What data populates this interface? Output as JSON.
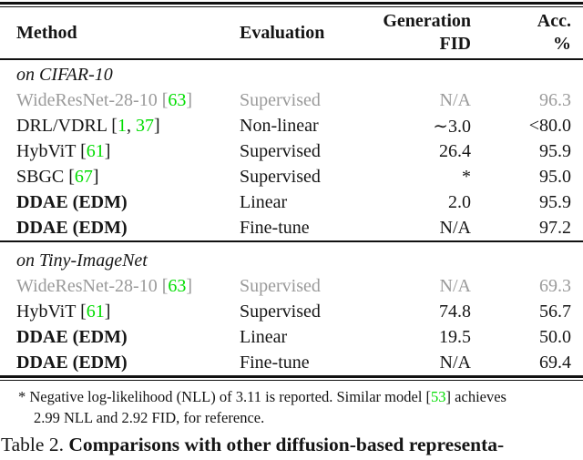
{
  "colors": {
    "citation_green": "#00dd00",
    "grayed_row": "#9a9a9a",
    "text_black": "#151515"
  },
  "header": {
    "method": "Method",
    "evaluation": "Evaluation",
    "generation_fid_line1": "Generation",
    "generation_fid_line2": "FID",
    "acc_line1": "Acc.",
    "acc_line2": "%"
  },
  "sections": [
    {
      "label": "on CIFAR-10",
      "rows": [
        {
          "method": "WideResNet-28-10",
          "refs": [
            "63"
          ],
          "evaluation": "Supervised",
          "fid": "N/A",
          "acc": "96.3",
          "grayed": true,
          "bold": false
        },
        {
          "method": "DRL/VDRL",
          "refs": [
            "1",
            "37"
          ],
          "evaluation": "Non-linear",
          "fid": "∼3.0",
          "acc": "<80.0",
          "grayed": false,
          "bold": false
        },
        {
          "method": "HybViT",
          "refs": [
            "61"
          ],
          "evaluation": "Supervised",
          "fid": "26.4",
          "acc": "95.9",
          "grayed": false,
          "bold": false
        },
        {
          "method": "SBGC",
          "refs": [
            "67"
          ],
          "evaluation": "Supervised",
          "fid": "*",
          "acc": "95.0",
          "grayed": false,
          "bold": false
        },
        {
          "method": "DDAE (EDM)",
          "refs": [],
          "evaluation": "Linear",
          "fid": "2.0",
          "acc": "95.9",
          "grayed": false,
          "bold": true
        },
        {
          "method": "DDAE (EDM)",
          "refs": [],
          "evaluation": "Fine-tune",
          "fid": "N/A",
          "acc": "97.2",
          "grayed": false,
          "bold": true
        }
      ]
    },
    {
      "label": "on Tiny-ImageNet",
      "rows": [
        {
          "method": "WideResNet-28-10",
          "refs": [
            "63"
          ],
          "evaluation": "Supervised",
          "fid": "N/A",
          "acc": "69.3",
          "grayed": true,
          "bold": false
        },
        {
          "method": "HybViT",
          "refs": [
            "61"
          ],
          "evaluation": "Supervised",
          "fid": "74.8",
          "acc": "56.7",
          "grayed": false,
          "bold": false
        },
        {
          "method": "DDAE (EDM)",
          "refs": [],
          "evaluation": "Linear",
          "fid": "19.5",
          "acc": "50.0",
          "grayed": false,
          "bold": true
        },
        {
          "method": "DDAE (EDM)",
          "refs": [],
          "evaluation": "Fine-tune",
          "fid": "N/A",
          "acc": "69.4",
          "grayed": false,
          "bold": true
        }
      ]
    }
  ],
  "footnote": {
    "line1_parts": [
      {
        "text": "* Negative log-likelihood (NLL) of 3.11 is reported. Similar model [",
        "green": false
      },
      {
        "text": "53",
        "green": true
      },
      {
        "text": "] achieves",
        "green": false
      }
    ],
    "line2": "2.99 NLL and 2.92 FID, for reference."
  },
  "caption": {
    "prefix": "Table 2. ",
    "bold_text": "Comparisons with other diffusion-based representa-"
  }
}
